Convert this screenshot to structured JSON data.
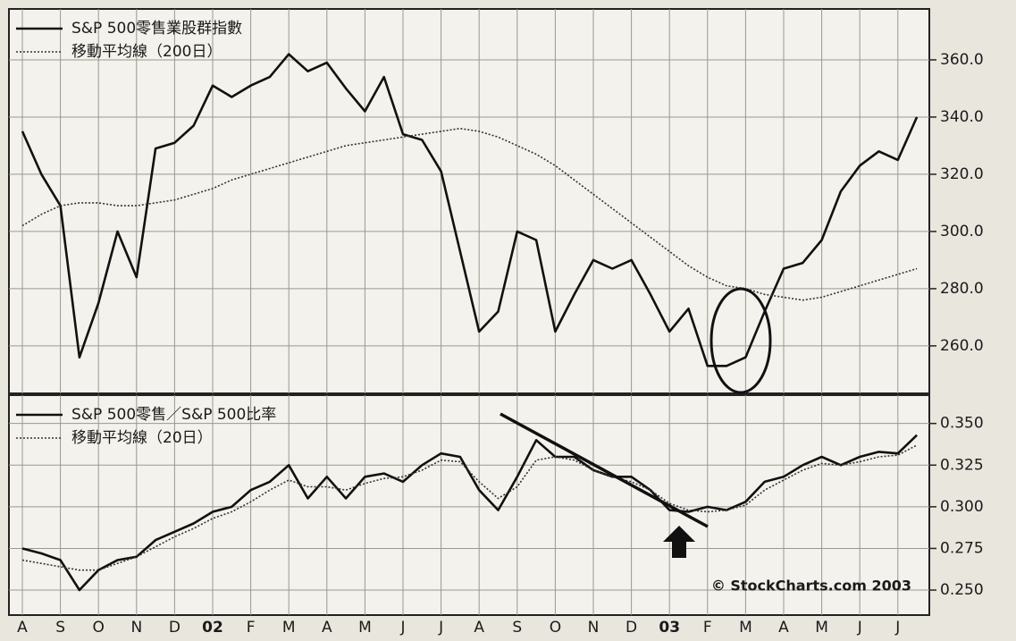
{
  "chart_data": [
    {
      "type": "line",
      "series": [
        {
          "name": "S&P 500零售業股群指數",
          "color": "#111111",
          "dash": "solid",
          "values": [
            335,
            320,
            309,
            256,
            275,
            300,
            284,
            329,
            331,
            337,
            351,
            347,
            351,
            354,
            362,
            356,
            359,
            350,
            342,
            354,
            334,
            332,
            321,
            293,
            265,
            272,
            300,
            297,
            265,
            278,
            290,
            287,
            290,
            278,
            265,
            273,
            253,
            253,
            256,
            272,
            287,
            289,
            297,
            314,
            323,
            328,
            325,
            340
          ]
        },
        {
          "name": "移動平均線（200日）",
          "color": "#333333",
          "dash": "dotted",
          "values": [
            302,
            306,
            309,
            310,
            310,
            309,
            309,
            310,
            311,
            313,
            315,
            318,
            320,
            322,
            324,
            326,
            328,
            330,
            331,
            332,
            333,
            334,
            335,
            336,
            335,
            333,
            330,
            327,
            323,
            318,
            313,
            308,
            303,
            298,
            293,
            288,
            284,
            281,
            280,
            278,
            277,
            276,
            277,
            279,
            281,
            283,
            285,
            287
          ]
        }
      ],
      "ylim": [
        243.4,
        377.8
      ],
      "yticks": [
        {
          "value": 260,
          "label": "260.0"
        },
        {
          "value": 280,
          "label": "280.0"
        },
        {
          "value": 300,
          "label": "300.0"
        },
        {
          "value": 320,
          "label": "320.0"
        },
        {
          "value": 340,
          "label": "340.0"
        },
        {
          "value": 360,
          "label": "360.0"
        }
      ],
      "grid": true
    },
    {
      "type": "line",
      "categories": [
        "A",
        null,
        "S",
        null,
        "O",
        null,
        "N",
        null,
        "D",
        null,
        "02",
        null,
        "F",
        null,
        "M",
        null,
        "A",
        null,
        "M",
        null,
        "J",
        null,
        "J",
        null,
        "A",
        null,
        "S",
        null,
        "O",
        null,
        "N",
        null,
        "D",
        null,
        "03",
        null,
        "F",
        null,
        "M",
        null,
        "A",
        null,
        "M",
        null,
        "J",
        null,
        "J",
        null
      ],
      "series": [
        {
          "name": "S&P 500零售／S&P 500比率",
          "color": "#111111",
          "dash": "solid",
          "values": [
            0.275,
            0.272,
            0.268,
            0.25,
            0.262,
            0.268,
            0.27,
            0.28,
            0.285,
            0.29,
            0.297,
            0.3,
            0.31,
            0.315,
            0.325,
            0.305,
            0.318,
            0.305,
            0.318,
            0.32,
            0.315,
            0.325,
            0.332,
            0.33,
            0.31,
            0.298,
            0.318,
            0.34,
            0.33,
            0.33,
            0.322,
            0.318,
            0.318,
            0.31,
            0.298,
            0.297,
            0.3,
            0.298,
            0.303,
            0.315,
            0.318,
            0.325,
            0.33,
            0.325,
            0.33,
            0.333,
            0.332,
            0.343
          ]
        },
        {
          "name": "移動平均線（20日）",
          "color": "#333333",
          "dash": "dotted",
          "values": [
            0.268,
            0.266,
            0.264,
            0.262,
            0.262,
            0.266,
            0.27,
            0.276,
            0.282,
            0.287,
            0.293,
            0.297,
            0.303,
            0.31,
            0.316,
            0.312,
            0.312,
            0.31,
            0.314,
            0.317,
            0.318,
            0.322,
            0.328,
            0.327,
            0.315,
            0.305,
            0.312,
            0.328,
            0.33,
            0.328,
            0.322,
            0.318,
            0.315,
            0.31,
            0.302,
            0.298,
            0.297,
            0.298,
            0.301,
            0.31,
            0.316,
            0.322,
            0.326,
            0.325,
            0.327,
            0.33,
            0.331,
            0.337
          ]
        }
      ],
      "ylim": [
        0.235,
        0.367
      ],
      "yticks": [
        {
          "value": 0.25,
          "label": "0.250"
        },
        {
          "value": 0.275,
          "label": "0.275"
        },
        {
          "value": 0.3,
          "label": "0.300"
        },
        {
          "value": 0.325,
          "label": "0.325"
        },
        {
          "value": 0.35,
          "label": "0.350"
        }
      ],
      "grid": true,
      "annotation": "© StockCharts.com 2003"
    }
  ]
}
